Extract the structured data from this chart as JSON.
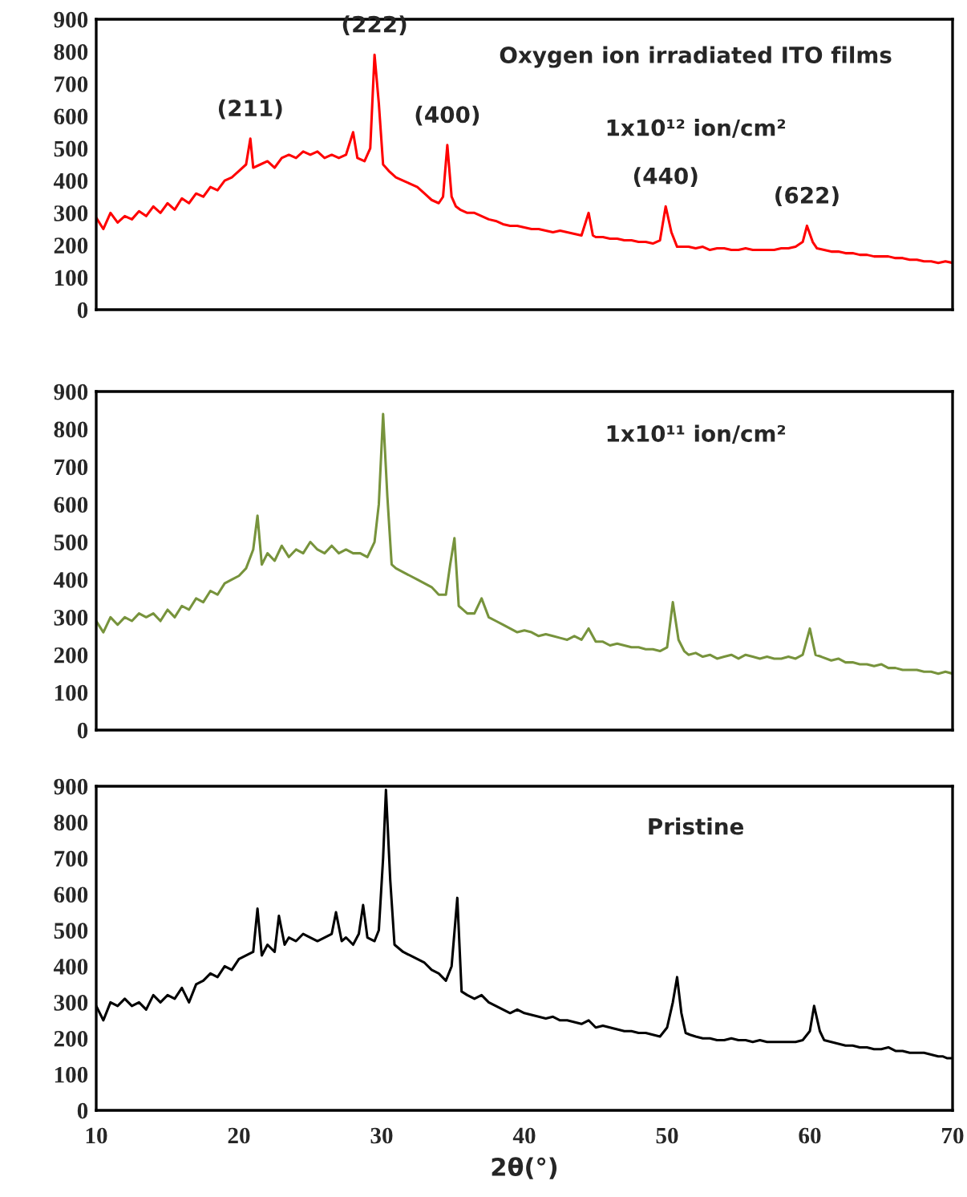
{
  "chart_data": [
    {
      "type": "line",
      "xlim": [
        10,
        70
      ],
      "xticks": [
        10,
        20,
        30,
        40,
        50,
        60,
        70
      ],
      "ylim": [
        0,
        900
      ],
      "yticks": [
        0,
        100,
        200,
        300,
        400,
        500,
        600,
        700,
        800,
        900
      ],
      "tick_labels": "y",
      "grid": false,
      "legend": false,
      "annotations": [
        "Oxygen ion irradiated ITO films",
        "1x10¹² ion/cm²",
        {
          "text": "(211)",
          "x": 20.8,
          "y": 530
        },
        {
          "text": "(222)",
          "x": 29.5,
          "y": 790
        },
        {
          "text": "(400)",
          "x": 34.6,
          "y": 510
        },
        {
          "text": "(440)",
          "x": 49.9,
          "y": 320
        },
        {
          "text": "(622)",
          "x": 59.8,
          "y": 260
        }
      ],
      "series": [
        {
          "color": "#ff0000",
          "x": [
            10,
            10.5,
            11,
            11.5,
            12,
            12.5,
            13,
            13.5,
            14,
            14.5,
            15,
            15.5,
            16,
            16.5,
            17,
            17.5,
            18,
            18.5,
            19,
            19.5,
            20,
            20.5,
            20.8,
            21,
            21.5,
            22,
            22.5,
            23,
            23.5,
            24,
            24.5,
            25,
            25.5,
            26,
            26.5,
            27,
            27.5,
            28,
            28.3,
            28.8,
            29.2,
            29.5,
            29.8,
            30.1,
            30.5,
            31,
            31.5,
            32,
            32.5,
            33,
            33.5,
            34,
            34.3,
            34.6,
            34.9,
            35.2,
            35.5,
            36,
            36.5,
            37,
            37.5,
            38,
            38.5,
            39,
            39.5,
            40,
            40.5,
            41,
            41.5,
            42,
            42.5,
            43,
            43.5,
            44,
            44.5,
            44.8,
            45,
            45.5,
            46,
            46.5,
            47,
            47.5,
            48,
            48.5,
            49,
            49.5,
            49.9,
            50.3,
            50.7,
            51,
            51.5,
            52,
            52.5,
            53,
            53.5,
            54,
            54.5,
            55,
            55.5,
            56,
            56.5,
            57,
            57.5,
            58,
            58.5,
            59,
            59.5,
            59.8,
            60.2,
            60.5,
            61,
            61.5,
            62,
            62.5,
            63,
            63.5,
            64,
            64.5,
            65,
            65.5,
            66,
            66.5,
            67,
            67.5,
            68,
            68.5,
            69,
            69.5,
            70
          ],
          "values": [
            285,
            250,
            300,
            270,
            290,
            280,
            305,
            290,
            320,
            300,
            330,
            310,
            345,
            330,
            360,
            350,
            380,
            370,
            400,
            410,
            430,
            450,
            530,
            440,
            450,
            460,
            440,
            470,
            480,
            470,
            490,
            480,
            490,
            470,
            480,
            470,
            480,
            550,
            470,
            460,
            500,
            790,
            640,
            450,
            430,
            410,
            400,
            390,
            380,
            360,
            340,
            330,
            350,
            510,
            350,
            320,
            310,
            300,
            300,
            290,
            280,
            275,
            265,
            260,
            260,
            255,
            250,
            250,
            245,
            240,
            245,
            240,
            235,
            230,
            300,
            230,
            225,
            225,
            220,
            220,
            215,
            215,
            210,
            210,
            205,
            215,
            320,
            240,
            195,
            195,
            195,
            190,
            195,
            185,
            190,
            190,
            185,
            185,
            190,
            185,
            185,
            185,
            185,
            190,
            190,
            195,
            210,
            260,
            210,
            190,
            185,
            180,
            180,
            175,
            175,
            170,
            170,
            165,
            165,
            165,
            160,
            160,
            155,
            155,
            150,
            150,
            145,
            150,
            145
          ]
        }
      ]
    },
    {
      "type": "line",
      "xlim": [
        10,
        70
      ],
      "xticks": [
        10,
        20,
        30,
        40,
        50,
        60,
        70
      ],
      "ylim": [
        0,
        900
      ],
      "yticks": [
        0,
        100,
        200,
        300,
        400,
        500,
        600,
        700,
        800,
        900
      ],
      "tick_labels": "y",
      "grid": false,
      "legend": false,
      "annotations": [
        "1x10¹¹ ion/cm²"
      ],
      "series": [
        {
          "color": "#77933c",
          "x": [
            10,
            10.5,
            11,
            11.5,
            12,
            12.5,
            13,
            13.5,
            14,
            14.5,
            15,
            15.5,
            16,
            16.5,
            17,
            17.5,
            18,
            18.5,
            19,
            19.5,
            20,
            20.5,
            21,
            21.3,
            21.6,
            22,
            22.5,
            23,
            23.5,
            24,
            24.5,
            25,
            25.5,
            26,
            26.5,
            27,
            27.5,
            28,
            28.5,
            29,
            29.5,
            29.8,
            30.1,
            30.4,
            30.7,
            31,
            31.5,
            32,
            32.5,
            33,
            33.5,
            34,
            34.5,
            34.8,
            35.1,
            35.4,
            35.7,
            36,
            36.5,
            37,
            37.5,
            38,
            38.5,
            39,
            39.5,
            40,
            40.5,
            41,
            41.5,
            42,
            42.5,
            43,
            43.5,
            44,
            44.5,
            45,
            45.5,
            46,
            46.5,
            47,
            47.5,
            48,
            48.5,
            49,
            49.5,
            50,
            50.4,
            50.8,
            51.2,
            51.5,
            52,
            52.5,
            53,
            53.5,
            54,
            54.5,
            55,
            55.5,
            56,
            56.5,
            57,
            57.5,
            58,
            58.5,
            59,
            59.5,
            60,
            60.4,
            60.8,
            61.5,
            62,
            62.5,
            63,
            63.5,
            64,
            64.5,
            65,
            65.5,
            66,
            66.5,
            67,
            67.5,
            68,
            68.5,
            69,
            69.5,
            70
          ],
          "values": [
            290,
            260,
            300,
            280,
            300,
            290,
            310,
            300,
            310,
            290,
            320,
            300,
            330,
            320,
            350,
            340,
            370,
            360,
            390,
            400,
            410,
            430,
            480,
            570,
            440,
            470,
            450,
            490,
            460,
            480,
            470,
            500,
            480,
            470,
            490,
            470,
            480,
            470,
            470,
            460,
            500,
            600,
            840,
            620,
            440,
            430,
            420,
            410,
            400,
            390,
            380,
            360,
            360,
            440,
            510,
            330,
            320,
            310,
            310,
            350,
            300,
            290,
            280,
            270,
            260,
            265,
            260,
            250,
            255,
            250,
            245,
            240,
            250,
            240,
            270,
            235,
            235,
            225,
            230,
            225,
            220,
            220,
            215,
            215,
            210,
            220,
            340,
            240,
            210,
            200,
            205,
            195,
            200,
            190,
            195,
            200,
            190,
            200,
            195,
            190,
            195,
            190,
            190,
            195,
            190,
            200,
            270,
            200,
            195,
            185,
            190,
            180,
            180,
            175,
            175,
            170,
            175,
            165,
            165,
            160,
            160,
            160,
            155,
            155,
            150,
            155,
            150
          ]
        }
      ]
    },
    {
      "type": "line",
      "xlim": [
        10,
        70
      ],
      "xticks": [
        10,
        20,
        30,
        40,
        50,
        60,
        70
      ],
      "ylim": [
        0,
        900
      ],
      "yticks": [
        0,
        100,
        200,
        300,
        400,
        500,
        600,
        700,
        800,
        900
      ],
      "xlabel": "2θ(°)",
      "grid": false,
      "legend": false,
      "annotations": [
        "Pristine"
      ],
      "series": [
        {
          "color": "#000000",
          "x": [
            10,
            10.5,
            11,
            11.5,
            12,
            12.5,
            13,
            13.5,
            14,
            14.5,
            15,
            15.5,
            16,
            16.5,
            17,
            17.5,
            18,
            18.5,
            19,
            19.5,
            20,
            20.5,
            21,
            21.3,
            21.6,
            22,
            22.5,
            22.8,
            23.2,
            23.5,
            24,
            24.5,
            25,
            25.5,
            26,
            26.5,
            26.8,
            27.2,
            27.5,
            28,
            28.4,
            28.7,
            29,
            29.5,
            29.8,
            30.1,
            30.3,
            30.6,
            30.9,
            31.2,
            31.5,
            32,
            32.5,
            33,
            33.5,
            34,
            34.5,
            34.9,
            35.3,
            35.6,
            36,
            36.5,
            37,
            37.5,
            38,
            38.5,
            39,
            39.5,
            40,
            40.5,
            41,
            41.5,
            42,
            42.5,
            43,
            43.5,
            44,
            44.5,
            45,
            45.5,
            46,
            46.5,
            47,
            47.5,
            48,
            48.5,
            49,
            49.5,
            50,
            50.4,
            50.7,
            51,
            51.3,
            51.6,
            52,
            52.5,
            53,
            53.5,
            54,
            54.5,
            55,
            55.5,
            56,
            56.5,
            57,
            57.5,
            58,
            58.5,
            59,
            59.5,
            60,
            60.3,
            60.7,
            61,
            61.5,
            62,
            62.5,
            63,
            63.5,
            64,
            64.5,
            65,
            65.5,
            66,
            66.5,
            67,
            67.5,
            68,
            68.5,
            69,
            69.3,
            69.6,
            70
          ],
          "values": [
            290,
            250,
            300,
            290,
            310,
            290,
            300,
            280,
            320,
            300,
            320,
            310,
            340,
            300,
            350,
            360,
            380,
            370,
            400,
            390,
            420,
            430,
            440,
            560,
            430,
            460,
            440,
            540,
            460,
            480,
            470,
            490,
            480,
            470,
            480,
            490,
            550,
            470,
            480,
            460,
            490,
            570,
            480,
            470,
            500,
            700,
            890,
            640,
            460,
            450,
            440,
            430,
            420,
            410,
            390,
            380,
            360,
            400,
            590,
            330,
            320,
            310,
            320,
            300,
            290,
            280,
            270,
            280,
            270,
            265,
            260,
            255,
            260,
            250,
            250,
            245,
            240,
            250,
            230,
            235,
            230,
            225,
            220,
            220,
            215,
            215,
            210,
            205,
            230,
            300,
            370,
            270,
            215,
            210,
            205,
            200,
            200,
            195,
            195,
            200,
            195,
            195,
            190,
            195,
            190,
            190,
            190,
            190,
            190,
            195,
            220,
            290,
            220,
            195,
            190,
            185,
            180,
            180,
            175,
            175,
            170,
            170,
            175,
            165,
            165,
            160,
            160,
            160,
            155,
            150,
            150,
            145,
            145
          ]
        }
      ]
    }
  ]
}
